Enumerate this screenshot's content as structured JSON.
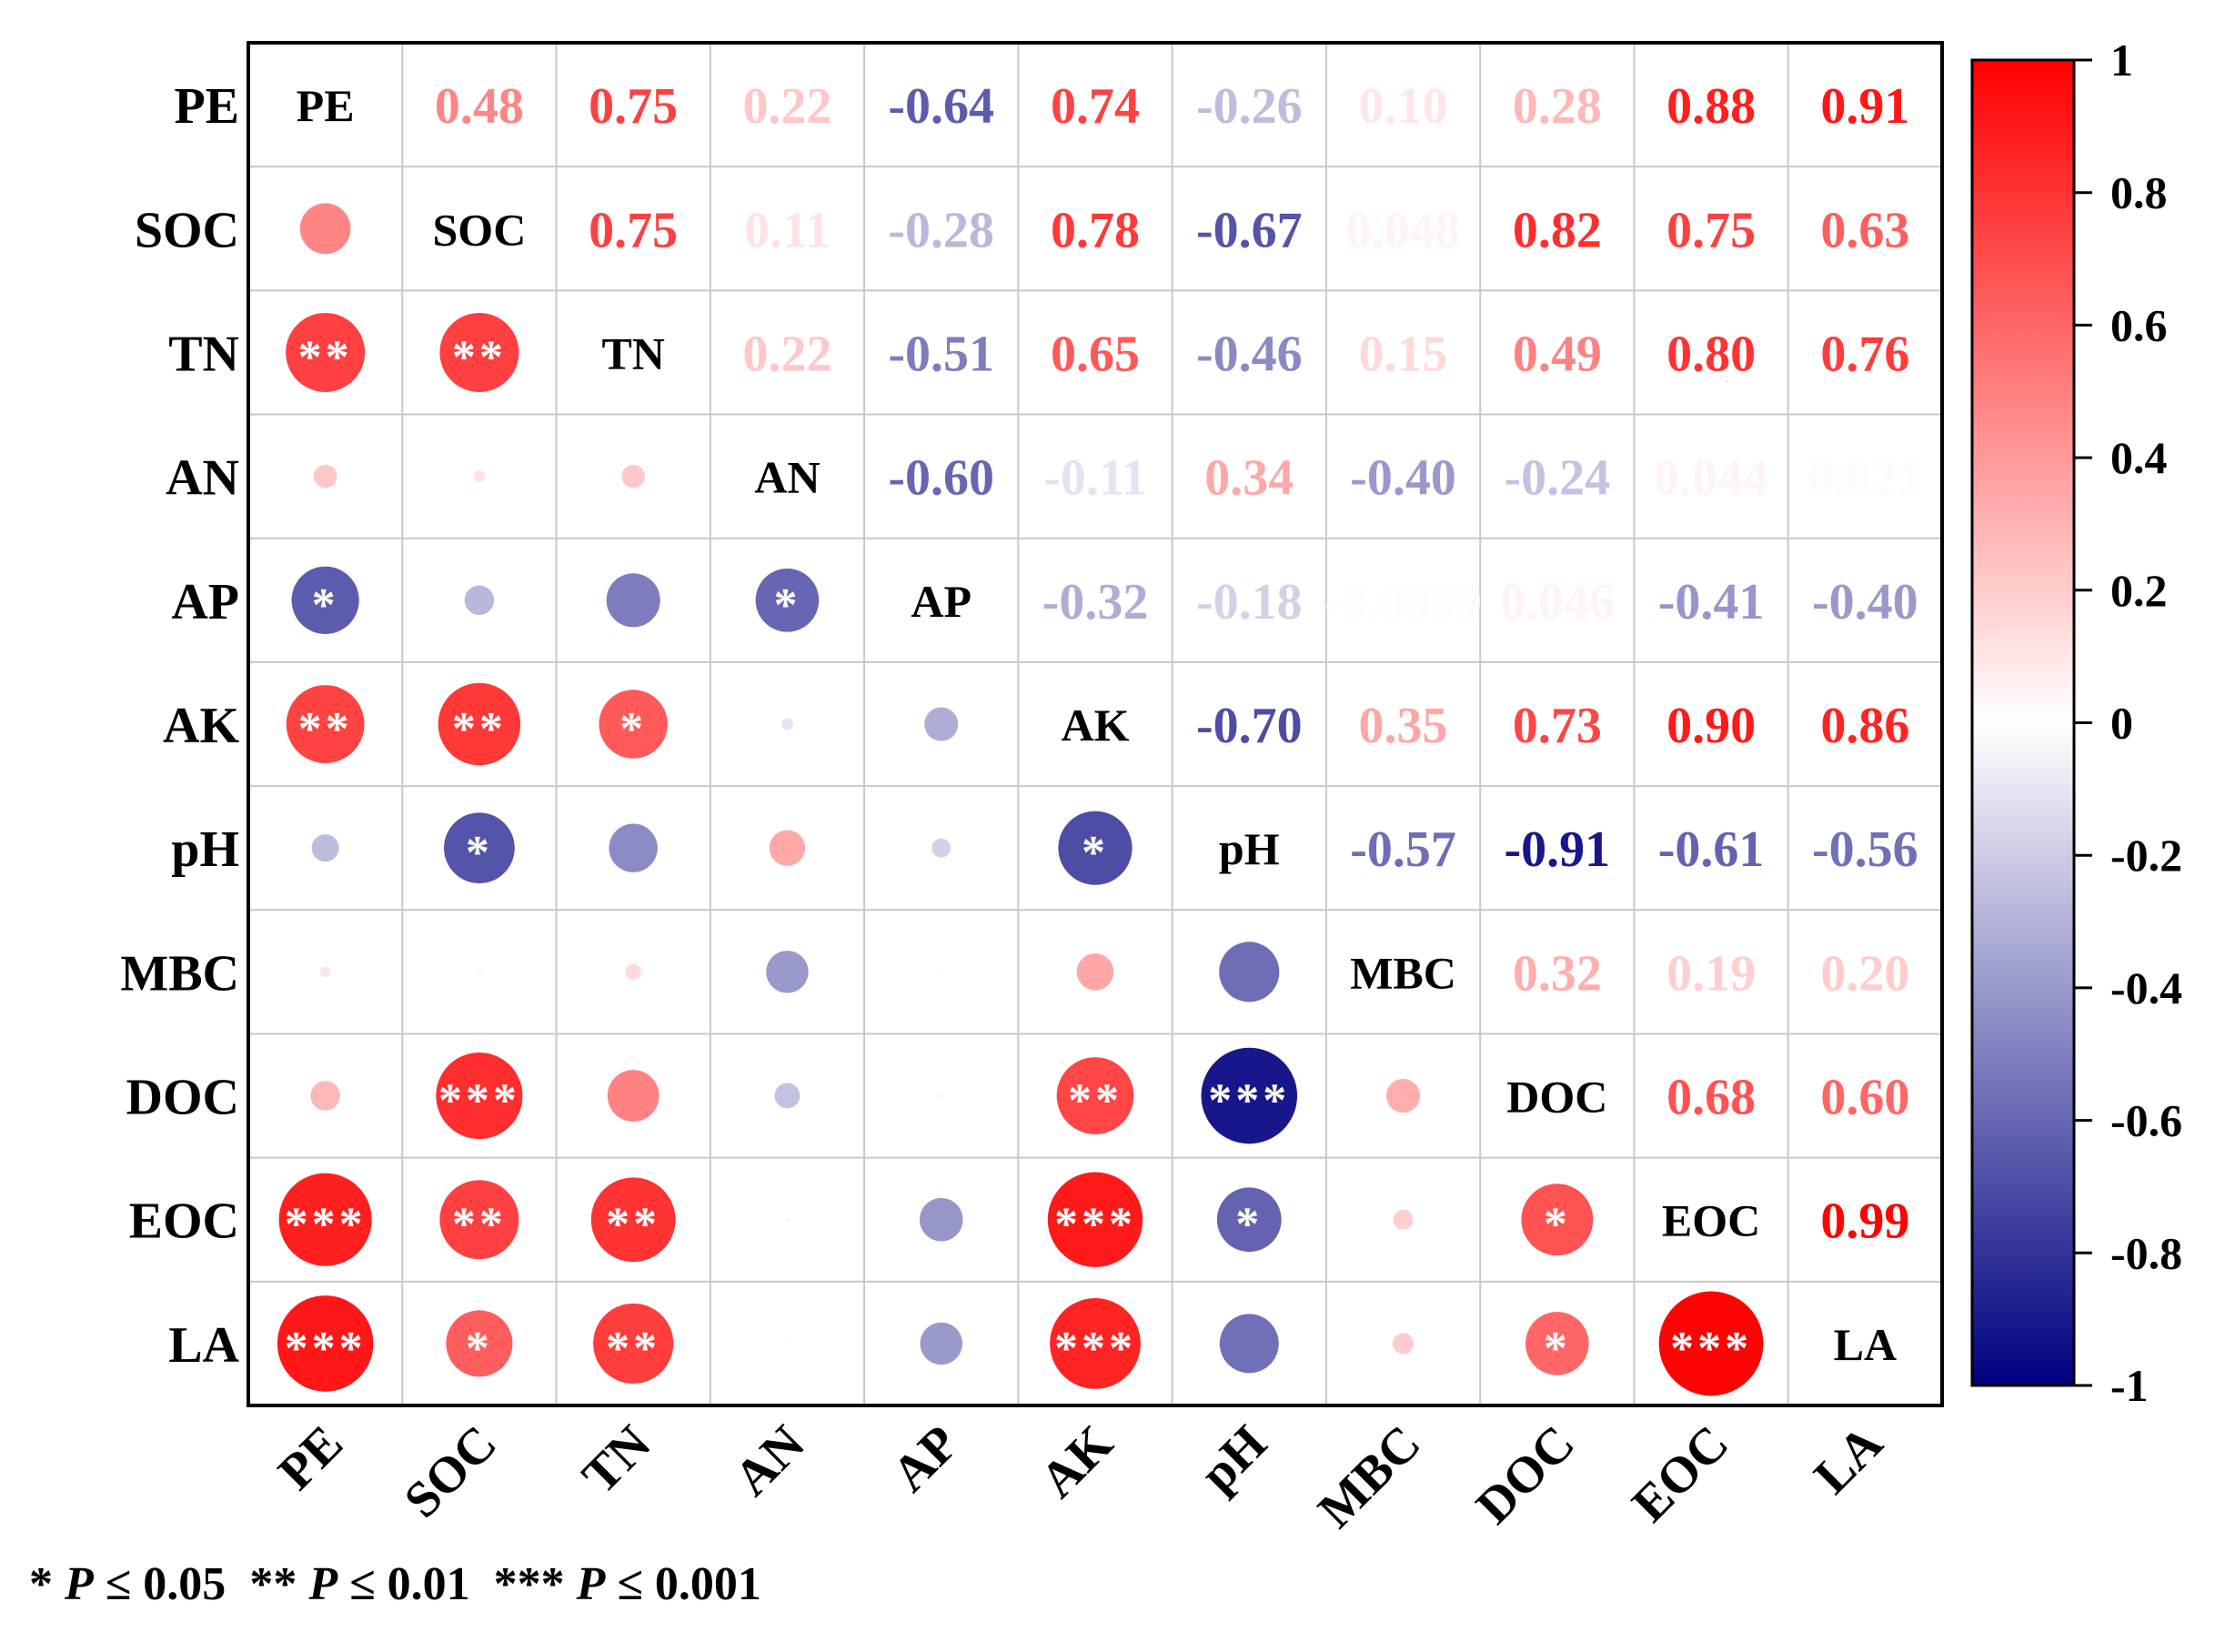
{
  "chart_data": {
    "type": "heatmap",
    "variables": [
      "PE",
      "SOC",
      "TN",
      "AN",
      "AP",
      "AK",
      "pH",
      "MBC",
      "DOC",
      "EOC",
      "LA"
    ],
    "upper_labels": [
      [
        "PE",
        "0.48",
        "0.75",
        "0.22",
        "-0.64",
        "0.74",
        "-0.26",
        "0.10",
        "0.28",
        "0.88",
        "0.91"
      ],
      [
        "",
        "SOC",
        "0.75",
        "0.11",
        "-0.28",
        "0.78",
        "-0.67",
        "0.048",
        "0.82",
        "0.75",
        "0.63"
      ],
      [
        "",
        "",
        "TN",
        "0.22",
        "-0.51",
        "0.65",
        "-0.46",
        "0.15",
        "0.49",
        "0.80",
        "0.76"
      ],
      [
        "",
        "",
        "",
        "AN",
        "-0.60",
        "-0.11",
        "0.34",
        "-0.40",
        "-0.24",
        "0.044",
        "0.021"
      ],
      [
        "",
        "",
        "",
        "",
        "AP",
        "-0.32",
        "-0.18",
        "-0.0099",
        "0.046",
        "-0.41",
        "-0.40"
      ],
      [
        "",
        "",
        "",
        "",
        "",
        "AK",
        "-0.70",
        "0.35",
        "0.73",
        "0.90",
        "0.86"
      ],
      [
        "",
        "",
        "",
        "",
        "",
        "",
        "pH",
        "-0.57",
        "-0.91",
        "-0.61",
        "-0.56"
      ],
      [
        "",
        "",
        "",
        "",
        "",
        "",
        "",
        "MBC",
        "0.32",
        "0.19",
        "0.20"
      ],
      [
        "",
        "",
        "",
        "",
        "",
        "",
        "",
        "",
        "DOC",
        "0.68",
        "0.60"
      ],
      [
        "",
        "",
        "",
        "",
        "",
        "",
        "",
        "",
        "",
        "EOC",
        "0.99"
      ],
      [
        "",
        "",
        "",
        "",
        "",
        "",
        "",
        "",
        "",
        "",
        "LA"
      ]
    ],
    "correlation_matrix": [
      [
        1,
        0.48,
        0.75,
        0.22,
        -0.64,
        0.74,
        -0.26,
        0.1,
        0.28,
        0.88,
        0.91
      ],
      [
        0.48,
        1,
        0.75,
        0.11,
        -0.28,
        0.78,
        -0.67,
        0.048,
        0.82,
        0.75,
        0.63
      ],
      [
        0.75,
        0.75,
        1,
        0.22,
        -0.51,
        0.65,
        -0.46,
        0.15,
        0.49,
        0.8,
        0.76
      ],
      [
        0.22,
        0.11,
        0.22,
        1,
        -0.6,
        -0.11,
        0.34,
        -0.4,
        -0.24,
        0.044,
        0.021
      ],
      [
        -0.64,
        -0.28,
        -0.51,
        -0.6,
        1,
        -0.32,
        -0.18,
        -0.0099,
        0.046,
        -0.41,
        -0.4
      ],
      [
        0.74,
        0.78,
        0.65,
        -0.11,
        -0.32,
        1,
        -0.7,
        0.35,
        0.73,
        0.9,
        0.86
      ],
      [
        -0.26,
        -0.67,
        -0.46,
        0.34,
        -0.18,
        -0.7,
        1,
        -0.57,
        -0.91,
        -0.61,
        -0.56
      ],
      [
        0.1,
        0.048,
        0.15,
        -0.4,
        -0.0099,
        0.35,
        -0.57,
        1,
        0.32,
        0.19,
        0.2
      ],
      [
        0.28,
        0.82,
        0.49,
        -0.24,
        0.046,
        0.73,
        -0.91,
        0.32,
        1,
        0.68,
        0.6
      ],
      [
        0.88,
        0.75,
        0.8,
        0.044,
        -0.41,
        0.9,
        -0.61,
        0.19,
        0.68,
        1,
        0.99
      ],
      [
        0.91,
        0.63,
        0.76,
        0.021,
        -0.4,
        0.86,
        -0.56,
        0.2,
        0.6,
        0.99,
        1
      ]
    ],
    "significance": [
      [
        "",
        "",
        "",
        "",
        "",
        "",
        "",
        "",
        "",
        "",
        ""
      ],
      [
        "",
        "",
        "",
        "",
        "",
        "",
        "",
        "",
        "",
        "",
        ""
      ],
      [
        "**",
        "**",
        "",
        "",
        "",
        "",
        "",
        "",
        "",
        "",
        ""
      ],
      [
        "",
        "",
        "",
        "",
        "",
        "",
        "",
        "",
        "",
        "",
        ""
      ],
      [
        "*",
        "",
        "",
        "*",
        "",
        "",
        "",
        "",
        "",
        "",
        ""
      ],
      [
        "**",
        "**",
        "*",
        "",
        "",
        "",
        "",
        "",
        "",
        "",
        ""
      ],
      [
        "",
        "*",
        "",
        "",
        "",
        "*",
        "",
        "",
        "",
        "",
        ""
      ],
      [
        "",
        "",
        "",
        "",
        "",
        "",
        "",
        "",
        "",
        "",
        ""
      ],
      [
        "",
        "***",
        "",
        "",
        "",
        "**",
        "***",
        "",
        "",
        "",
        ""
      ],
      [
        "***",
        "**",
        "**",
        "",
        "",
        "***",
        "*",
        "",
        "*",
        "",
        ""
      ],
      [
        "***",
        "*",
        "**",
        "",
        "",
        "***",
        "",
        "",
        "*",
        "***",
        ""
      ]
    ],
    "colorbar": {
      "range": [
        -1,
        1
      ],
      "ticks": [
        "1",
        "0.8",
        "0.6",
        "0.4",
        "0.2",
        "0",
        "-0.2",
        "-0.4",
        "-0.6",
        "-0.8",
        "-1"
      ],
      "colors": {
        "positive": "#ff0000",
        "zero": "#ffffff",
        "negative": "#000080"
      }
    },
    "footnote": {
      "parts": [
        {
          "stars": "*",
          "p": "P",
          "op": "≤ 0.05"
        },
        {
          "stars": "**",
          "p": "P",
          "op": "≤ 0.01"
        },
        {
          "stars": "***",
          "p": "P",
          "op": "≤ 0.001"
        }
      ]
    }
  }
}
